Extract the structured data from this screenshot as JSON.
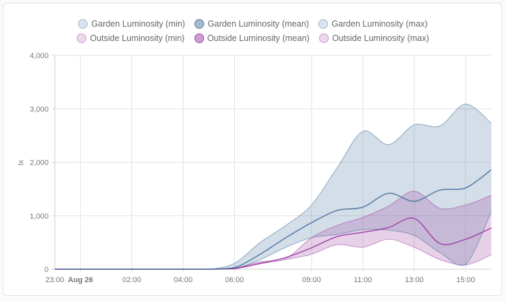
{
  "chart_data": {
    "type": "area",
    "title": "",
    "xlabel": "",
    "ylabel": "lx",
    "ylim": [
      0,
      4000
    ],
    "grid": true,
    "legend": "top",
    "y_ticks": [
      "0",
      "1,000",
      "2,000",
      "3,000",
      "4,000"
    ],
    "x_ticks": [
      {
        "label": "23:00",
        "hour": 0,
        "bold": false
      },
      {
        "label": "Aug 26",
        "hour": 1,
        "bold": true
      },
      {
        "label": "02:00",
        "hour": 3,
        "bold": false
      },
      {
        "label": "04:00",
        "hour": 5,
        "bold": false
      },
      {
        "label": "06:00",
        "hour": 7,
        "bold": false
      },
      {
        "label": "09:00",
        "hour": 10,
        "bold": false
      },
      {
        "label": "11:00",
        "hour": 12,
        "bold": false
      },
      {
        "label": "13:00",
        "hour": 14,
        "bold": false
      },
      {
        "label": "15:00",
        "hour": 16,
        "bold": false
      }
    ],
    "x": [
      "23:00",
      "00:00",
      "01:00",
      "02:00",
      "03:00",
      "04:00",
      "05:00",
      "06:00",
      "07:00",
      "08:00",
      "09:00",
      "10:00",
      "11:00",
      "12:00",
      "13:00",
      "14:00",
      "15:00",
      "16:00"
    ],
    "series": [
      {
        "name": "Garden Luminosity (min)",
        "color": "#4b75a0",
        "values": [
          0,
          0,
          0,
          0,
          0,
          0,
          0,
          10,
          180,
          410,
          590,
          650,
          740,
          730,
          630,
          310,
          90,
          1070
        ]
      },
      {
        "name": "Garden Luminosity (mean)",
        "color": "#4b75a0",
        "values": [
          0,
          0,
          0,
          0,
          0,
          0,
          0,
          30,
          280,
          590,
          870,
          1100,
          1160,
          1420,
          1270,
          1480,
          1520,
          1860
        ]
      },
      {
        "name": "Garden Luminosity (max)",
        "color": "#4b75a0",
        "values": [
          0,
          0,
          0,
          0,
          0,
          0,
          0,
          110,
          500,
          820,
          1200,
          1900,
          2580,
          2330,
          2700,
          2680,
          3090,
          2730
        ]
      },
      {
        "name": "Outside Luminosity (min)",
        "color": "#9c3ea4",
        "values": [
          0,
          0,
          0,
          0,
          0,
          0,
          0,
          5,
          100,
          180,
          280,
          460,
          410,
          560,
          410,
          180,
          80,
          270
        ]
      },
      {
        "name": "Outside Luminosity (mean)",
        "color": "#9c3ea4",
        "values": [
          0,
          0,
          0,
          0,
          0,
          0,
          0,
          15,
          110,
          220,
          400,
          610,
          690,
          780,
          950,
          480,
          560,
          770
        ]
      },
      {
        "name": "Outside Luminosity (max)",
        "color": "#9c3ea4",
        "values": [
          0,
          0,
          0,
          0,
          0,
          0,
          0,
          20,
          140,
          200,
          590,
          820,
          970,
          1180,
          1460,
          1140,
          1200,
          1380
        ]
      }
    ]
  }
}
